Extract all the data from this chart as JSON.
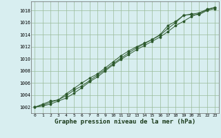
{
  "background_color": "#d8eef0",
  "plot_bg_color": "#d8eef0",
  "grid_color": "#99bb99",
  "line_color": "#2d5a2d",
  "marker_color": "#2d5a2d",
  "xlabel": "Graphe pression niveau de la mer (hPa)",
  "xlabel_fontsize": 6.5,
  "title": "",
  "xlim": [
    -0.5,
    23.5
  ],
  "ylim": [
    1001.0,
    1019.5
  ],
  "yticks": [
    1002,
    1004,
    1006,
    1008,
    1010,
    1012,
    1014,
    1016,
    1018
  ],
  "xticks": [
    0,
    1,
    2,
    3,
    4,
    5,
    6,
    7,
    8,
    9,
    10,
    11,
    12,
    13,
    14,
    15,
    16,
    17,
    18,
    19,
    20,
    21,
    22,
    23
  ],
  "xtick_labels": [
    "0",
    "1",
    "2",
    "3",
    "4",
    "5",
    "6",
    "7",
    "8",
    "9",
    "10",
    "11",
    "12",
    "13",
    "14",
    "15",
    "16",
    "17",
    "18",
    "19",
    "20",
    "21",
    "22",
    "23"
  ],
  "series": [
    [
      1002.0,
      1002.3,
      1002.8,
      1003.2,
      1003.9,
      1004.8,
      1005.5,
      1006.4,
      1007.3,
      1008.2,
      1009.2,
      1010.1,
      1011.0,
      1011.8,
      1012.5,
      1013.2,
      1013.9,
      1015.0,
      1016.0,
      1017.2,
      1017.3,
      1017.3,
      1018.0,
      1018.3
    ],
    [
      1002.0,
      1002.5,
      1003.0,
      1003.2,
      1004.2,
      1005.1,
      1006.0,
      1006.8,
      1007.5,
      1008.5,
      1009.5,
      1010.5,
      1011.3,
      1012.0,
      1012.6,
      1013.2,
      1014.0,
      1015.5,
      1016.2,
      1017.2,
      1017.4,
      1017.6,
      1018.2,
      1018.5
    ],
    [
      1002.0,
      1002.2,
      1002.5,
      1003.0,
      1003.5,
      1004.3,
      1005.2,
      1006.2,
      1007.0,
      1008.0,
      1009.0,
      1009.9,
      1010.7,
      1011.5,
      1012.2,
      1012.9,
      1013.6,
      1014.5,
      1015.5,
      1016.2,
      1017.0,
      1017.5,
      1018.1,
      1018.5
    ]
  ]
}
